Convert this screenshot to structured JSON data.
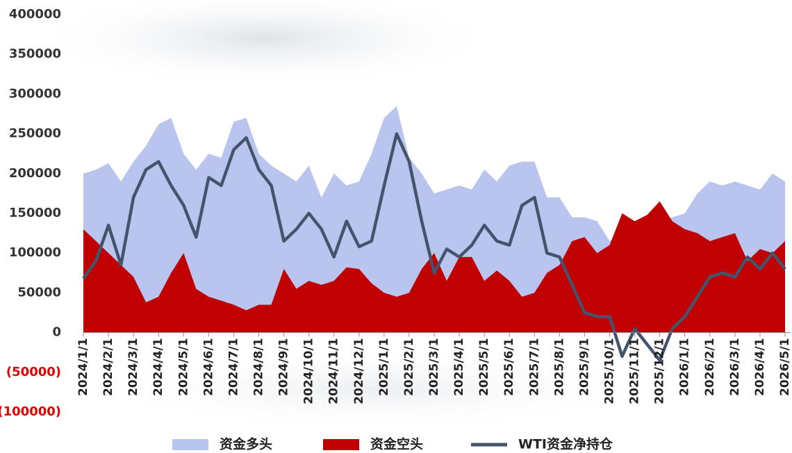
{
  "chart_data": {
    "type": "area_line",
    "categories": [
      "2024/1/1",
      null,
      "2024/2/1",
      null,
      "2024/3/1",
      null,
      "2024/4/1",
      null,
      "2024/5/1",
      null,
      "2024/6/1",
      null,
      "2024/7/1",
      null,
      "2024/8/1",
      null,
      "2024/9/1",
      null,
      "2024/10/1",
      null,
      "2024/11/1",
      null,
      "2024/12/1",
      null,
      "2025/1/1",
      null,
      "2025/2/1",
      null,
      "2025/3/1",
      null,
      "2025/4/1",
      null,
      "2025/5/1",
      null,
      "2025/6/1",
      null,
      "2025/7/1",
      null,
      "2025/8/1",
      null,
      "2025/9/1",
      null,
      "2025/10/1",
      null,
      "2025/11/1",
      null,
      "2025/12/1",
      null,
      "2026/1/1",
      null,
      "2026/2/1",
      null,
      "2026/3/1",
      null,
      "2026/4/1",
      null,
      "2026/5/1"
    ],
    "series": [
      {
        "name": "资金多头",
        "kind": "area",
        "color": "#b9c5ef",
        "values": [
          200000,
          205000,
          213000,
          190000,
          215000,
          235000,
          262000,
          270000,
          225000,
          205000,
          225000,
          220000,
          265000,
          270000,
          225000,
          210000,
          200000,
          190000,
          210000,
          170000,
          200000,
          185000,
          190000,
          225000,
          270000,
          285000,
          220000,
          200000,
          175000,
          180000,
          185000,
          180000,
          205000,
          190000,
          210000,
          215000,
          215000,
          170000,
          170000,
          145000,
          145000,
          140000,
          115000,
          125000,
          130000,
          135000,
          140000,
          145000,
          150000,
          175000,
          190000,
          185000,
          190000,
          185000,
          180000,
          200000,
          190000
        ]
      },
      {
        "name": "资金空头",
        "kind": "area",
        "color": "#c00000",
        "values": [
          130000,
          115000,
          100000,
          85000,
          70000,
          38000,
          45000,
          75000,
          100000,
          55000,
          45000,
          40000,
          35000,
          28000,
          35000,
          35000,
          80000,
          55000,
          65000,
          60000,
          65000,
          82000,
          80000,
          62000,
          50000,
          45000,
          50000,
          80000,
          100000,
          65000,
          95000,
          95000,
          65000,
          78000,
          65000,
          45000,
          50000,
          75000,
          85000,
          115000,
          120000,
          100000,
          110000,
          150000,
          140000,
          148000,
          165000,
          140000,
          130000,
          125000,
          115000,
          120000,
          125000,
          90000,
          105000,
          100000,
          115000
        ]
      },
      {
        "name": "WTI资金净持仓",
        "kind": "line",
        "color": "#44546a",
        "values": [
          68000,
          90000,
          135000,
          85000,
          170000,
          205000,
          215000,
          185000,
          160000,
          120000,
          195000,
          185000,
          230000,
          245000,
          205000,
          185000,
          115000,
          130000,
          150000,
          130000,
          95000,
          140000,
          108000,
          115000,
          185000,
          250000,
          215000,
          140000,
          75000,
          105000,
          95000,
          110000,
          135000,
          115000,
          110000,
          160000,
          170000,
          100000,
          95000,
          60000,
          25000,
          20000,
          20000,
          -30000,
          5000,
          -15000,
          -35000,
          5000,
          20000,
          45000,
          70000,
          75000,
          70000,
          95000,
          80000,
          100000,
          80000
        ]
      }
    ],
    "ylim": [
      -100000,
      400000
    ],
    "yticks": [
      {
        "value": -100000,
        "label": "(100000)"
      },
      {
        "value": -50000,
        "label": "(50000)"
      },
      0,
      50000,
      100000,
      150000,
      200000,
      250000,
      300000,
      350000,
      400000
    ],
    "negative_tick_color": "#e00000",
    "legend": "bottom"
  }
}
